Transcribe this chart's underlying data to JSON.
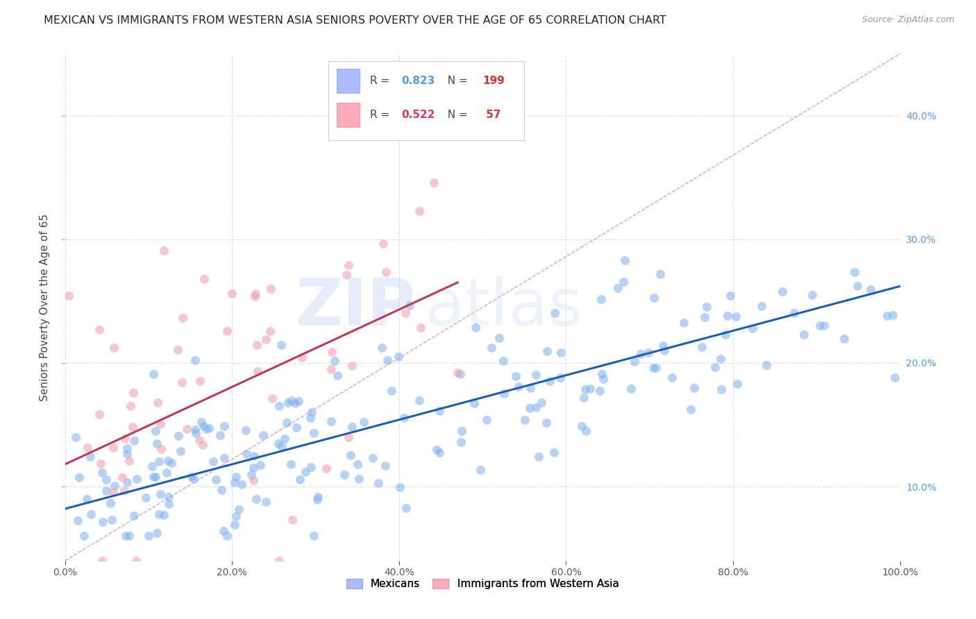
{
  "title": "MEXICAN VS IMMIGRANTS FROM WESTERN ASIA SENIORS POVERTY OVER THE AGE OF 65 CORRELATION CHART",
  "source": "Source: ZipAtlas.com",
  "ylabel": "Seniors Poverty Over the Age of 65",
  "watermark_zip": "ZIP",
  "watermark_atlas": "atlas",
  "legend_blue_r": "0.823",
  "legend_blue_n": "199",
  "legend_pink_r": "0.522",
  "legend_pink_n": "57",
  "legend_labels_bottom": [
    "Mexicans",
    "Immigrants from Western Asia"
  ],
  "blue_color": "#7aaff0",
  "pink_color": "#f09ab0",
  "blue_line_color": "#1a5fb4",
  "pink_line_color": "#c0395a",
  "diag_line_color": "#e8a0b0",
  "xlim": [
    0.0,
    1.0
  ],
  "ylim": [
    0.04,
    0.45
  ],
  "yticks": [
    0.1,
    0.2,
    0.3,
    0.4
  ],
  "xticks": [
    0.0,
    0.2,
    0.4,
    0.6,
    0.8,
    1.0
  ],
  "grid_color": "#dddddd",
  "background_color": "#ffffff",
  "title_fontsize": 11.5,
  "axis_label_fontsize": 11,
  "tick_fontsize": 10,
  "right_tick_color": "#5599ee",
  "blue_line_x": [
    0.0,
    1.0
  ],
  "blue_line_y": [
    0.082,
    0.262
  ],
  "pink_line_x": [
    0.0,
    0.47
  ],
  "pink_line_y": [
    0.118,
    0.265
  ],
  "seed": 42
}
